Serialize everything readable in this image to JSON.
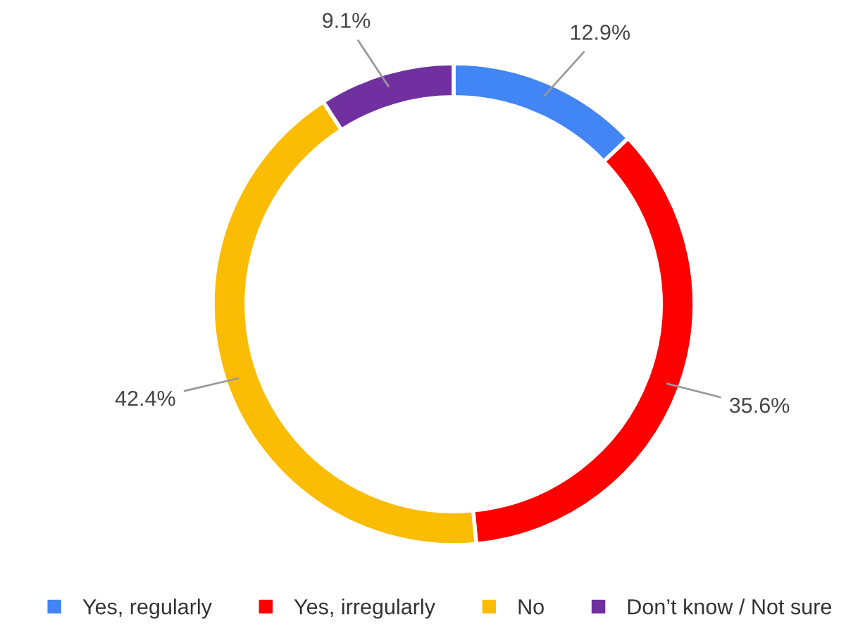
{
  "chart_data": {
    "type": "donut",
    "categories": [
      "Yes, regularly",
      "Yes, irregularly",
      "No",
      "Don’t know / Not sure"
    ],
    "values": [
      12.9,
      35.6,
      42.4,
      9.1
    ],
    "colors": [
      "#4285f4",
      "#ff0000",
      "#fbbc04",
      "#7030a0"
    ],
    "value_labels": [
      "12.9%",
      "35.6%",
      "42.4%",
      "9.1%"
    ],
    "legend": "bottom"
  }
}
